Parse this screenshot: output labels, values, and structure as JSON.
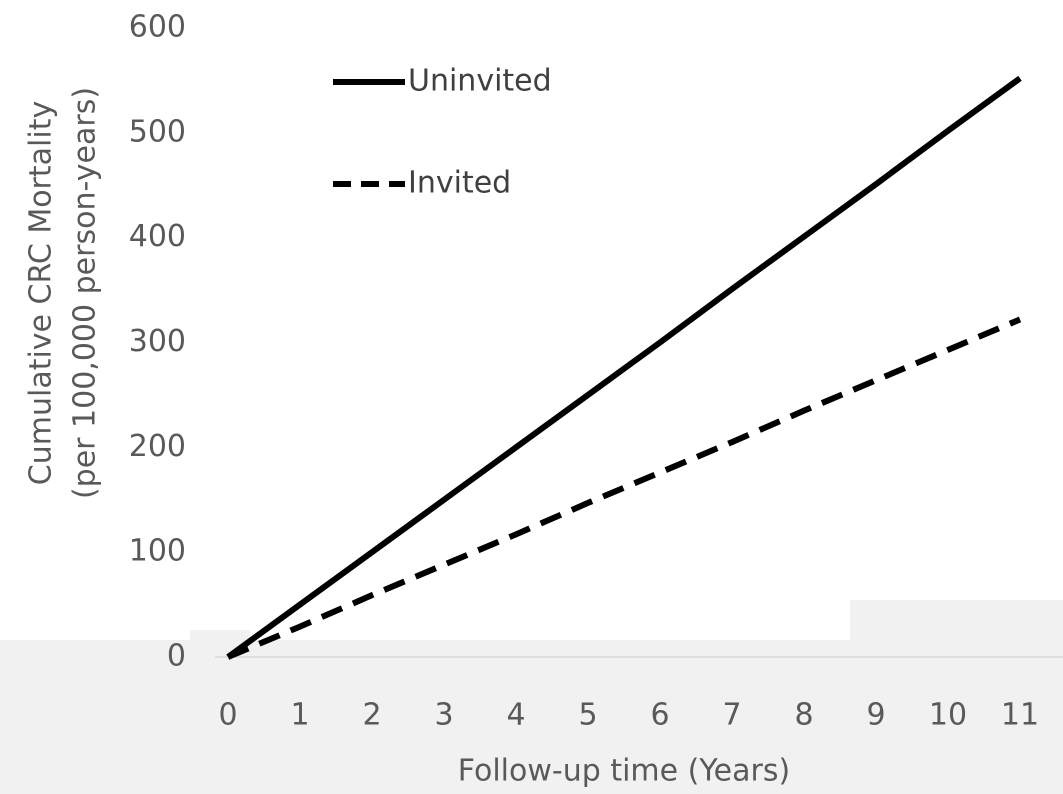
{
  "chart_data": {
    "type": "line",
    "ylabel": [
      "Cumulative CRC Mortality",
      "(per 100,000 person-years)"
    ],
    "xlabel": "Follow-up time (Years)",
    "x": [
      0,
      1,
      2,
      3,
      4,
      5,
      6,
      7,
      8,
      9,
      10,
      11
    ],
    "series": [
      {
        "name": "Uninvited",
        "color": "#000000",
        "dash": "solid",
        "values": [
          0,
          50,
          100,
          150,
          200,
          250,
          300,
          351,
          401,
          451,
          502,
          552
        ]
      },
      {
        "name": "Invited",
        "color": "#000000",
        "dash": "dashed",
        "values": [
          0,
          29,
          59,
          88,
          117,
          147,
          176,
          205,
          235,
          264,
          293,
          322
        ]
      }
    ],
    "xlim": [
      0,
      11
    ],
    "xticks": [
      0,
      1,
      2,
      3,
      4,
      5,
      6,
      7,
      8,
      9,
      10,
      11
    ],
    "ylim": [
      0,
      600
    ],
    "yticks": [
      0,
      100,
      200,
      300,
      400,
      500,
      600
    ],
    "grid": false
  }
}
